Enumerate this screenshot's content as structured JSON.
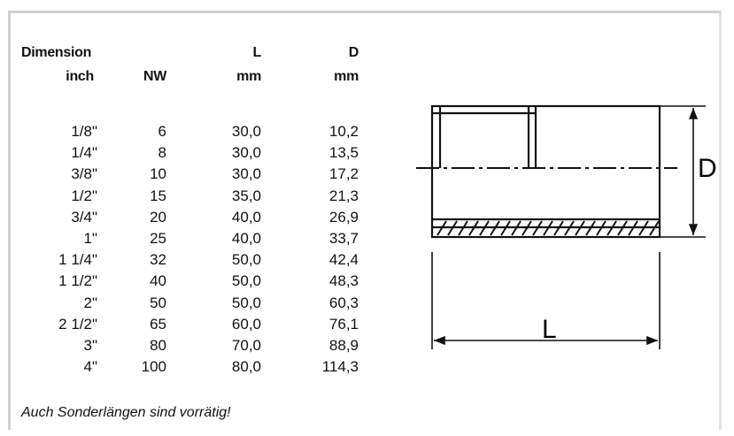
{
  "table": {
    "header_top": [
      "Dimension",
      "",
      "L",
      "D"
    ],
    "header_bottom": [
      "inch",
      "NW",
      "mm",
      "mm"
    ],
    "rows": [
      [
        "1/8\"",
        "6",
        "30,0",
        "10,2"
      ],
      [
        "1/4\"",
        "8",
        "30,0",
        "13,5"
      ],
      [
        "3/8\"",
        "10",
        "30,0",
        "17,2"
      ],
      [
        "1/2\"",
        "15",
        "35,0",
        "21,3"
      ],
      [
        "3/4\"",
        "20",
        "40,0",
        "26,9"
      ],
      [
        "1\"",
        "25",
        "40,0",
        "33,7"
      ],
      [
        "1 1/4\"",
        "32",
        "50,0",
        "42,4"
      ],
      [
        "1 1/2\"",
        "40",
        "50,0",
        "48,3"
      ],
      [
        "2\"",
        "50",
        "50,0",
        "60,3"
      ],
      [
        "2 1/2\"",
        "65",
        "60,0",
        "76,1"
      ],
      [
        "3\"",
        "80",
        "70,0",
        "88,9"
      ],
      [
        "4\"",
        "100",
        "80,0",
        "114,3"
      ]
    ]
  },
  "note": "Auch Sonderlängen sind vorrätig!",
  "drawing": {
    "diameter_label": "D",
    "length_label": "L"
  }
}
